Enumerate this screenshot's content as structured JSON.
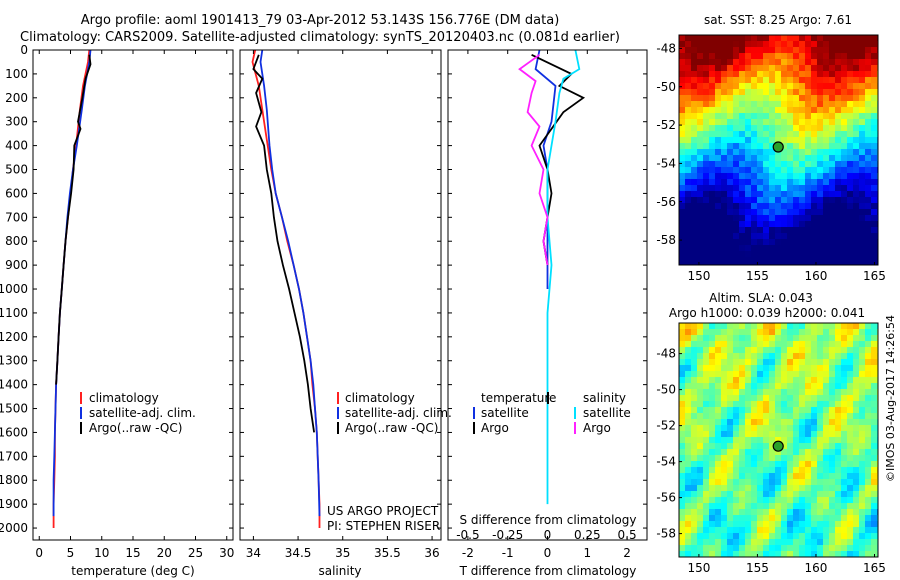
{
  "header": {
    "title_line1": "Argo profile: aoml 1901413_79 03-Apr-2012 53.143S 156.776E (DM data)",
    "title_line2": "Climatology: CARS2009. Satellite-adjusted climatology: synTS_20120403.nc (0.081d earlier)"
  },
  "credits": {
    "project_line1": "US ARGO PROJECT",
    "project_line2": "PI: STEPHEN RISER",
    "timestamp": "©IMOS 03-Aug-2017 14:26:54"
  },
  "colors": {
    "climatology": "#ff2020",
    "satellite": "#1030e0",
    "argo": "#000000",
    "salinity_satellite": "#00e0ff",
    "salinity_argo": "#ff20ff",
    "marker_fill": "#2aa02a"
  },
  "chart_data": [
    {
      "id": "temperature",
      "type": "line",
      "xlabel": "temperature (deg C)",
      "ylabel": "",
      "xlim": [
        -1,
        31
      ],
      "ylim": [
        2050,
        0
      ],
      "xticks": [
        "0",
        "5",
        "10",
        "15",
        "20",
        "25",
        "30"
      ],
      "xtick_values": [
        0,
        5,
        10,
        15,
        20,
        25,
        30
      ],
      "yticks": [
        "0",
        "100",
        "200",
        "300",
        "400",
        "500",
        "600",
        "700",
        "800",
        "900",
        "1000",
        "1100",
        "1200",
        "1300",
        "1400",
        "1500",
        "1600",
        "1700",
        "1800",
        "1900",
        "2000"
      ],
      "ytick_values": [
        0,
        100,
        200,
        300,
        400,
        500,
        600,
        700,
        800,
        900,
        1000,
        1100,
        1200,
        1300,
        1400,
        1500,
        1600,
        1700,
        1800,
        1900,
        2000
      ],
      "legend": [
        "climatology",
        "satellite-adj. clim.",
        "Argo(..raw -QC)"
      ],
      "series": [
        {
          "name": "climatology",
          "color_key": "climatology",
          "x": [
            8.0,
            7.8,
            7.0,
            6.5,
            5.9,
            5.4,
            5.0,
            4.6,
            4.2,
            3.9,
            3.6,
            3.3,
            3.1,
            2.9,
            2.7,
            2.6,
            2.5,
            2.5,
            2.4,
            2.3,
            2.3
          ],
          "y": [
            0,
            50,
            150,
            250,
            400,
            500,
            600,
            700,
            800,
            900,
            1000,
            1100,
            1200,
            1300,
            1400,
            1500,
            1600,
            1700,
            1800,
            1900,
            2000
          ]
        },
        {
          "name": "satellite-adj. clim.",
          "color_key": "satellite",
          "x": [
            8.2,
            8.0,
            7.3,
            6.8,
            6.0,
            5.4,
            4.9,
            4.5,
            4.2,
            3.9,
            3.6,
            3.3,
            3.1,
            2.9,
            2.7,
            2.6,
            2.5,
            2.4,
            2.3,
            2.3
          ],
          "y": [
            0,
            50,
            150,
            250,
            400,
            500,
            600,
            700,
            800,
            900,
            1000,
            1100,
            1200,
            1300,
            1400,
            1500,
            1600,
            1700,
            1800,
            1950
          ]
        },
        {
          "name": "Argo(..raw -QC)",
          "color_key": "argo",
          "x": [
            8.0,
            8.2,
            7.4,
            6.9,
            6.2,
            6.6,
            5.6,
            5.5,
            5.1,
            4.6,
            4.2,
            3.9,
            3.6,
            3.3,
            3.1,
            2.9,
            2.7
          ],
          "y": [
            20,
            60,
            120,
            200,
            300,
            330,
            400,
            500,
            600,
            700,
            800,
            900,
            1000,
            1100,
            1200,
            1300,
            1400
          ]
        }
      ]
    },
    {
      "id": "salinity",
      "type": "line",
      "xlabel": "salinity",
      "ylabel": "",
      "xlim": [
        33.85,
        36.1
      ],
      "ylim": [
        2050,
        0
      ],
      "xticks": [
        "34",
        "34.5",
        "35",
        "35.5",
        "36"
      ],
      "xtick_values": [
        34,
        34.5,
        35,
        35.5,
        36
      ],
      "legend": [
        "climatology",
        "satellite-adj. clim.",
        "Argo(..raw -QC)"
      ],
      "series": [
        {
          "name": "climatology",
          "color_key": "climatology",
          "x": [
            34.02,
            33.99,
            34.06,
            34.1,
            34.16,
            34.2,
            34.25,
            34.32,
            34.38,
            34.45,
            34.51,
            34.56,
            34.6,
            34.64,
            34.66,
            34.69,
            34.71,
            34.72,
            34.73,
            34.74,
            34.74
          ],
          "y": [
            0,
            50,
            150,
            250,
            400,
            500,
            600,
            700,
            800,
            900,
            1000,
            1100,
            1200,
            1300,
            1400,
            1500,
            1600,
            1700,
            1800,
            1900,
            2000
          ]
        },
        {
          "name": "satellite-adj. clim.",
          "color_key": "satellite",
          "x": [
            34.1,
            34.08,
            34.12,
            34.15,
            34.18,
            34.21,
            34.25,
            34.32,
            34.39,
            34.45,
            34.51,
            34.56,
            34.6,
            34.64,
            34.67,
            34.69,
            34.71,
            34.72,
            34.73,
            34.74
          ],
          "y": [
            0,
            50,
            150,
            250,
            400,
            500,
            600,
            700,
            800,
            900,
            1000,
            1100,
            1200,
            1300,
            1400,
            1500,
            1600,
            1700,
            1800,
            1950
          ]
        },
        {
          "name": "Argo(..raw -QC)",
          "color_key": "argo",
          "x": [
            34.06,
            34.0,
            34.1,
            34.03,
            34.09,
            34.03,
            34.12,
            34.15,
            34.2,
            34.23,
            34.27,
            34.33,
            34.4,
            34.46,
            34.52,
            34.57,
            34.61,
            34.64,
            34.68
          ],
          "y": [
            20,
            80,
            120,
            180,
            260,
            320,
            400,
            500,
            600,
            700,
            800,
            900,
            1000,
            1100,
            1200,
            1300,
            1400,
            1500,
            1600
          ]
        }
      ]
    },
    {
      "id": "difference",
      "type": "line",
      "xlabel_top": "S difference from climatology",
      "xlabel": "T difference from climatology",
      "xlim": [
        -2.5,
        2.5
      ],
      "ylim": [
        2050,
        0
      ],
      "xticks": [
        "-2",
        "-1",
        "0",
        "1",
        "2"
      ],
      "xtick_values": [
        -2,
        -1,
        0,
        1,
        2
      ],
      "sticks": [
        "-0.5",
        "-0.25",
        "0",
        "0.25",
        "0.5"
      ],
      "stick_values": [
        -0.5,
        -0.25,
        0,
        0.25,
        0.5
      ],
      "s_scale_factor": 4,
      "legend_temperature": [
        "temperature",
        "satellite",
        "Argo"
      ],
      "legend_salinity": [
        "salinity",
        "satellite",
        "Argo"
      ],
      "series": [
        {
          "name": "temperature satellite",
          "color_key": "satellite",
          "x": [
            -0.2,
            -0.3,
            0.2,
            0.1,
            -0.1,
            0.0,
            0.0,
            0.0,
            0.0
          ],
          "y": [
            0,
            80,
            150,
            300,
            400,
            500,
            600,
            700,
            1000
          ]
        },
        {
          "name": "temperature Argo",
          "color_key": "argo",
          "x": [
            -0.4,
            0.6,
            0.3,
            0.9,
            0.4,
            0.1,
            -0.2,
            0.0,
            0.1,
            0.0,
            -0.1,
            0.0
          ],
          "y": [
            20,
            100,
            150,
            200,
            260,
            330,
            400,
            500,
            600,
            700,
            800,
            900
          ]
        },
        {
          "name": "salinity satellite",
          "color_key": "salinity_satellite",
          "x": [
            0.7,
            0.8,
            0.4,
            0.3,
            0.2,
            0.1,
            0.0,
            0.0,
            0.1,
            0.0,
            0.0,
            0.0,
            0.0
          ],
          "y": [
            0,
            80,
            120,
            180,
            300,
            400,
            500,
            700,
            900,
            1100,
            1300,
            1600,
            1900
          ]
        },
        {
          "name": "salinity Argo",
          "color_key": "salinity_argo",
          "x": [
            -0.2,
            -0.7,
            -0.3,
            -0.4,
            -0.5,
            -0.2,
            -0.4,
            -0.1,
            -0.2,
            0.0,
            -0.1,
            0.0
          ],
          "y": [
            20,
            80,
            130,
            180,
            260,
            320,
            400,
            500,
            600,
            700,
            800,
            900
          ]
        }
      ]
    },
    {
      "id": "sst_map",
      "type": "heatmap",
      "title": "sat. SST: 8.25  Argo: 7.61",
      "xlim": [
        148.3,
        165.3
      ],
      "ylim": [
        -59.3,
        -47.3
      ],
      "xticks": [
        "150",
        "155",
        "160",
        "165"
      ],
      "xtick_values": [
        150,
        155,
        160,
        165
      ],
      "yticks": [
        "-48",
        "-50",
        "-52",
        "-54",
        "-56",
        "-58"
      ],
      "ytick_values": [
        -48,
        -50,
        -52,
        -54,
        -56,
        -58
      ],
      "marker": {
        "lon": 156.776,
        "lat": -53.143
      }
    },
    {
      "id": "sla_map",
      "type": "heatmap",
      "title_line1": "Altim. SLA: 0.043",
      "title_line2": "Argo h1000: 0.039 h2000: 0.041",
      "xlim": [
        148.3,
        165.3
      ],
      "ylim": [
        -59.3,
        -46.3
      ],
      "xticks": [
        "150",
        "155",
        "160",
        "165"
      ],
      "xtick_values": [
        150,
        155,
        160,
        165
      ],
      "yticks": [
        "-48",
        "-50",
        "-52",
        "-54",
        "-56",
        "-58"
      ],
      "ytick_values": [
        -48,
        -50,
        -52,
        -54,
        -56,
        -58
      ],
      "marker": {
        "lon": 156.776,
        "lat": -53.143
      }
    }
  ]
}
